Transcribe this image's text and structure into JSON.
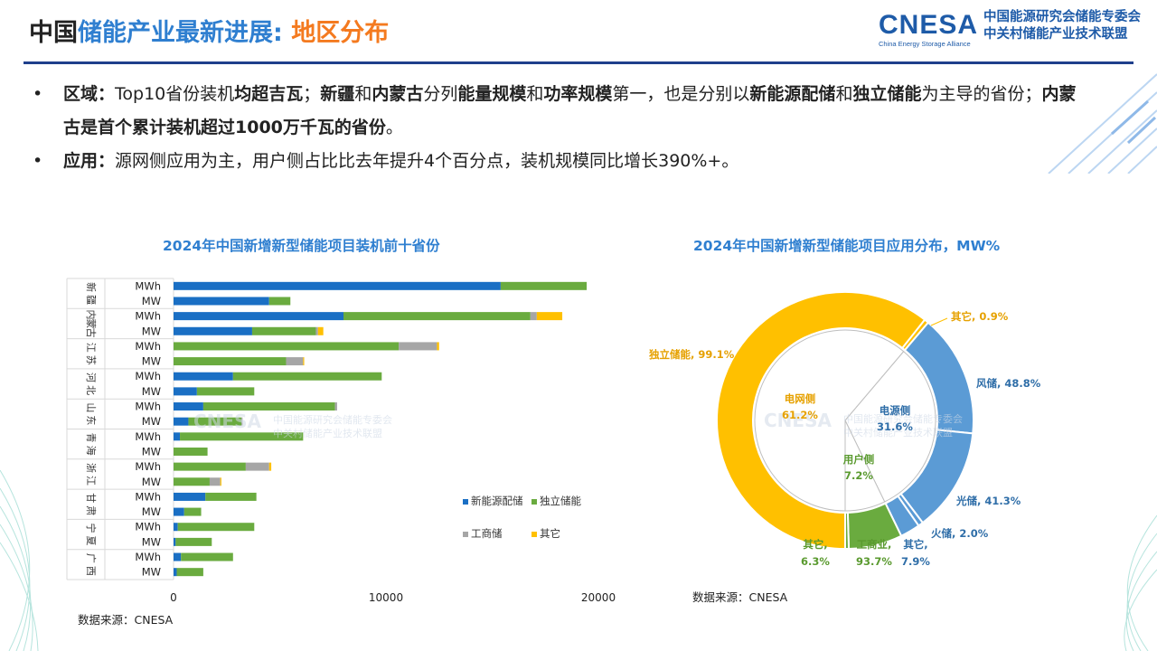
{
  "header": {
    "title_part1": "中国",
    "title_part2": "储能产业最新进展: ",
    "title_part3": "地区分布",
    "logo_text": "CNESA",
    "logo_sub": "China Energy Storage Alliance",
    "logo_cn_line1": "中国能源研究会储能专委会",
    "logo_cn_line2": "中关村储能产业技术联盟"
  },
  "bullets": [
    [
      {
        "t": "区域：",
        "b": true
      },
      {
        "t": "Top10省份装机",
        "b": false
      },
      {
        "t": "均超吉瓦",
        "b": true
      },
      {
        "t": "；",
        "b": false
      },
      {
        "t": "新疆",
        "b": true
      },
      {
        "t": "和",
        "b": false
      },
      {
        "t": "内蒙古",
        "b": true
      },
      {
        "t": "分列",
        "b": false
      },
      {
        "t": "能量规模",
        "b": true
      },
      {
        "t": "和",
        "b": false
      },
      {
        "t": "功率规模",
        "b": true
      },
      {
        "t": "第一，也是分别以",
        "b": false
      },
      {
        "t": "新能源配储",
        "b": true
      },
      {
        "t": "和",
        "b": false
      },
      {
        "t": "独立储能",
        "b": true
      },
      {
        "t": "为主导的省份；",
        "b": false
      },
      {
        "t": "内蒙古是首个累计装机超过1000万千瓦的省份",
        "b": true
      },
      {
        "t": "。",
        "b": false
      }
    ],
    [
      {
        "t": "应用：",
        "b": true
      },
      {
        "t": "源网侧应用为主，用户侧占比比去年提升4个百分点，装机规模同比增长390%+。",
        "b": false
      }
    ]
  ],
  "source_label": "数据来源：CNESA",
  "chart_data": [
    {
      "type": "bar",
      "orientation": "horizontal",
      "stacked": true,
      "title": "2024年中国新增新型储能项目装机前十省份",
      "provinces": [
        "新疆",
        "内蒙古",
        "江苏",
        "河北",
        "山东",
        "青海",
        "浙江",
        "甘肃",
        "宁夏",
        "广西"
      ],
      "units": [
        "MWh",
        "MW"
      ],
      "series": [
        {
          "name": "新能源配储",
          "color": "#1a6fc4"
        },
        {
          "name": "独立储能",
          "color": "#6aab3f"
        },
        {
          "name": "工商储",
          "color": "#a6a6a6"
        },
        {
          "name": "其它",
          "color": "#ffc000"
        }
      ],
      "rows": [
        {
          "province": "新疆",
          "unit": "MWh",
          "values": [
            15400,
            4050,
            0,
            0
          ]
        },
        {
          "province": "新疆",
          "unit": "MW",
          "values": [
            4500,
            1000,
            0,
            0
          ]
        },
        {
          "province": "内蒙古",
          "unit": "MWh",
          "values": [
            8000,
            8800,
            300,
            1200
          ]
        },
        {
          "province": "内蒙古",
          "unit": "MW",
          "values": [
            3700,
            3000,
            100,
            250
          ]
        },
        {
          "province": "江苏",
          "unit": "MWh",
          "values": [
            0,
            10600,
            1800,
            100
          ]
        },
        {
          "province": "江苏",
          "unit": "MW",
          "values": [
            0,
            5300,
            800,
            50
          ]
        },
        {
          "province": "河北",
          "unit": "MWh",
          "values": [
            2800,
            7000,
            0,
            0
          ]
        },
        {
          "province": "河北",
          "unit": "MW",
          "values": [
            1100,
            2700,
            0,
            0
          ]
        },
        {
          "province": "山东",
          "unit": "MWh",
          "values": [
            1400,
            6200,
            100,
            0
          ]
        },
        {
          "province": "山东",
          "unit": "MW",
          "values": [
            700,
            2500,
            50,
            0
          ]
        },
        {
          "province": "青海",
          "unit": "MWh",
          "values": [
            300,
            5800,
            0,
            0
          ]
        },
        {
          "province": "青海",
          "unit": "MW",
          "values": [
            0,
            1600,
            0,
            0
          ]
        },
        {
          "province": "浙江",
          "unit": "MWh",
          "values": [
            0,
            3400,
            1100,
            100
          ]
        },
        {
          "province": "浙江",
          "unit": "MW",
          "values": [
            0,
            1700,
            500,
            50
          ]
        },
        {
          "province": "甘肃",
          "unit": "MWh",
          "values": [
            1500,
            2400,
            0,
            0
          ]
        },
        {
          "province": "甘肃",
          "unit": "MW",
          "values": [
            500,
            800,
            0,
            0
          ]
        },
        {
          "province": "宁夏",
          "unit": "MWh",
          "values": [
            200,
            3600,
            0,
            0
          ]
        },
        {
          "province": "宁夏",
          "unit": "MW",
          "values": [
            100,
            1700,
            0,
            0
          ]
        },
        {
          "province": "广西",
          "unit": "MWh",
          "values": [
            350,
            2450,
            0,
            0
          ]
        },
        {
          "province": "广西",
          "unit": "MW",
          "values": [
            150,
            1250,
            0,
            0
          ]
        }
      ],
      "xticks": [
        0,
        10000,
        20000
      ],
      "xlim": [
        0,
        21000
      ],
      "legend_position": "bottom-right"
    },
    {
      "type": "pie",
      "variant": "nested-donut",
      "title": "2024年中国新增新型储能项目应用分布，MW%",
      "inner": [
        {
          "label": "电网侧",
          "value": 61.2,
          "color": "#ffc000",
          "pct_label": "61.2%",
          "label_color": "#e6a100"
        },
        {
          "label": "电源侧",
          "value": 31.6,
          "color": "#5b9bd5",
          "pct_label": "31.6%",
          "label_color": "#2f6ea8"
        },
        {
          "label": "用户侧",
          "value": 7.2,
          "color": "#6aab3f",
          "pct_label": "7.2%",
          "label_color": "#5a9a2f"
        }
      ],
      "outer": [
        {
          "label": "独立储能",
          "value": 60.65,
          "color": "#ffc000",
          "pct_label": "99.1%",
          "group": "电网侧",
          "label_color": "#e6a100"
        },
        {
          "label": "其它",
          "value": 0.55,
          "color": "#ffc000",
          "pct_label": "0.9%",
          "group": "电网侧",
          "label_color": "#e6a100"
        },
        {
          "label": "风储",
          "value": 15.42,
          "color": "#5b9bd5",
          "pct_label": "48.8%",
          "group": "电源侧",
          "label_color": "#2f6ea8"
        },
        {
          "label": "光储",
          "value": 13.05,
          "color": "#5b9bd5",
          "pct_label": "41.3%",
          "group": "电源侧",
          "label_color": "#2f6ea8"
        },
        {
          "label": "火储",
          "value": 0.63,
          "color": "#5b9bd5",
          "pct_label": "2.0%",
          "group": "电源侧",
          "label_color": "#2f6ea8"
        },
        {
          "label": "其它",
          "value": 2.5,
          "color": "#5b9bd5",
          "pct_label": "7.9%",
          "group": "电源侧",
          "label_color": "#2f6ea8"
        },
        {
          "label": "工商业",
          "value": 6.75,
          "color": "#6aab3f",
          "pct_label": "93.7%",
          "group": "用户侧",
          "label_color": "#5a9a2f"
        },
        {
          "label": "其它",
          "value": 0.45,
          "color": "#6aab3f",
          "pct_label": "6.3%",
          "group": "用户侧",
          "label_color": "#5a9a2f"
        }
      ]
    }
  ]
}
